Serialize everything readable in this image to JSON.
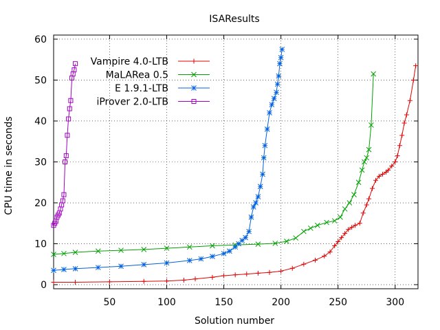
{
  "chart_data": {
    "type": "line",
    "title": "ISAResults",
    "xlabel": "Solution number",
    "ylabel": "CPU time in seconds",
    "xlim": [
      1,
      320
    ],
    "ylim": [
      -1,
      61
    ],
    "xticks": [
      50,
      100,
      150,
      200,
      250,
      300
    ],
    "yticks": [
      0,
      10,
      20,
      30,
      40,
      50,
      60
    ],
    "grid": true,
    "legend": "top-left",
    "series": [
      {
        "name": "Vampire 4.0-LTB",
        "color": "#e00000",
        "marker": "plus",
        "x": [
          1,
          20,
          50,
          80,
          100,
          115,
          125,
          140,
          150,
          160,
          170,
          180,
          190,
          200,
          210,
          220,
          230,
          238,
          243,
          247,
          250,
          253,
          256,
          259,
          262,
          265,
          269,
          272,
          275,
          277,
          280,
          283,
          286,
          289,
          292,
          294,
          297,
          300,
          302,
          304,
          306,
          308,
          310,
          313,
          316,
          318
        ],
        "y": [
          0.6,
          0.6,
          0.7,
          0.8,
          0.9,
          1.1,
          1.4,
          1.8,
          2.2,
          2.4,
          2.6,
          2.8,
          3.0,
          3.3,
          4.0,
          5.0,
          6.0,
          7.0,
          8.0,
          9.5,
          10.5,
          11.5,
          12.5,
          13.5,
          14.0,
          14.5,
          15.0,
          17.5,
          19.5,
          21.0,
          23.5,
          25.5,
          26.5,
          27.0,
          27.5,
          28.0,
          29.0,
          30.0,
          31.5,
          34.0,
          36.5,
          39.5,
          41.5,
          45.0,
          50.0,
          53.5
        ]
      },
      {
        "name": "MaLARea 0.5",
        "color": "#00a000",
        "marker": "cross",
        "x": [
          1,
          10,
          20,
          40,
          60,
          80,
          100,
          120,
          140,
          160,
          180,
          195,
          205,
          213,
          220,
          226,
          232,
          240,
          247,
          252,
          256,
          260,
          264,
          268,
          271,
          273,
          275,
          277,
          279,
          281
        ],
        "y": [
          7.4,
          7.6,
          7.9,
          8.2,
          8.4,
          8.6,
          8.9,
          9.2,
          9.5,
          9.7,
          9.9,
          10.1,
          10.6,
          11.4,
          13.0,
          13.8,
          14.5,
          15.2,
          15.6,
          16.5,
          18.5,
          20.0,
          22.0,
          25.0,
          28.0,
          30.0,
          31.0,
          33.0,
          39.0,
          51.5
        ]
      },
      {
        "name": "E 1.9.1-LTB",
        "color": "#0060e0",
        "marker": "star",
        "x": [
          1,
          10,
          20,
          40,
          60,
          80,
          100,
          120,
          130,
          140,
          150,
          155,
          160,
          163,
          166,
          169,
          172,
          174,
          176,
          178,
          180,
          182,
          184,
          185,
          186,
          188,
          190,
          192,
          194,
          196,
          197,
          198,
          199,
          200,
          201
        ],
        "y": [
          3.5,
          3.7,
          3.9,
          4.2,
          4.5,
          4.9,
          5.3,
          5.9,
          6.3,
          6.9,
          7.6,
          8.2,
          9.2,
          10.0,
          10.8,
          11.5,
          13.0,
          16.5,
          19.0,
          20.0,
          21.5,
          24.0,
          27.0,
          31.0,
          34.0,
          38.0,
          42.0,
          44.0,
          45.5,
          47.0,
          49.0,
          51.0,
          54.0,
          55.5,
          57.5
        ]
      },
      {
        "name": "iProver 2.0-LTB",
        "color": "#a000c0",
        "marker": "square",
        "x": [
          1,
          2,
          3,
          4,
          5,
          6,
          7,
          8,
          9,
          10,
          11,
          12,
          13,
          14,
          15,
          16,
          17,
          18,
          19,
          20
        ],
        "y": [
          14.5,
          15.0,
          15.5,
          16.5,
          17.0,
          17.5,
          18.5,
          19.5,
          20.5,
          22.0,
          30.0,
          31.5,
          36.5,
          40.5,
          43.0,
          45.0,
          50.5,
          51.5,
          52.5,
          54.0
        ]
      }
    ]
  }
}
